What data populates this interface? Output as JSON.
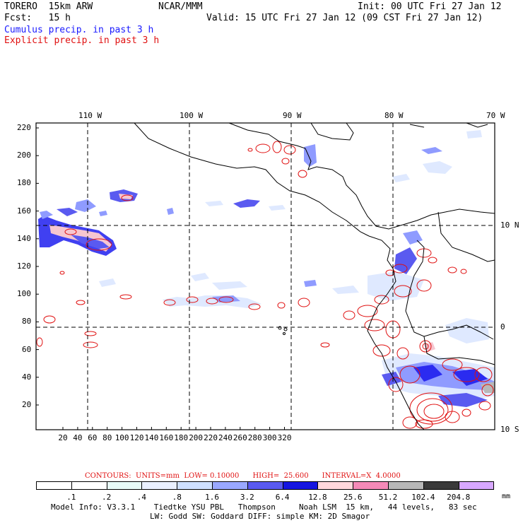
{
  "header": {
    "model": "TORERO  15km ARW",
    "org": "NCAR/MMM",
    "init": "Init: 00 UTC Fri 27 Jan 12",
    "fcst": "Fcst:   15 h",
    "valid": "Valid: 15 UTC Fri 27 Jan 12 (09 CST Fri 27 Jan 12)"
  },
  "legend": {
    "cumulus": "Cumulus precip. in past 3 h",
    "explicit": "Explicit precip. in past 3 h"
  },
  "map": {
    "top_lon_labels": [
      "110 W",
      "100 W",
      "90 W",
      "80 W",
      "70 W"
    ],
    "right_lat_labels": [
      "10 N",
      "0",
      "10 S"
    ],
    "y_ticks": [
      "220",
      "200",
      "180",
      "160",
      "140",
      "120",
      "100",
      "80",
      "60",
      "40",
      "20"
    ],
    "x_ticks": [
      "20",
      "40",
      "60",
      "80",
      "100",
      "120",
      "140",
      "160",
      "180",
      "200",
      "220",
      "240",
      "260",
      "280",
      "300",
      "320"
    ],
    "colors": {
      "coast": "#000000",
      "explicit_contour": "#e01010",
      "cumulus_light": "#dfe9ff",
      "cumulus_mid": "#8f9bff",
      "cumulus_dark": "#2b2bf0",
      "cumulus_pink": "#f6c6d0"
    }
  },
  "contours": {
    "text": "CONTOURS:  UNITS=mm  LOW= 0.10000      HIGH=  25.600      INTERVAL=X  4.0000"
  },
  "colorbar": {
    "labels": [
      ".1",
      ".2",
      ".4",
      ".8",
      "1.6",
      "3.2",
      "6.4",
      "12.8",
      "25.6",
      "51.2",
      "102.4",
      "204.8"
    ],
    "colors": [
      "#ffffff",
      "#ffffff",
      "#e8fbf8",
      "#eaf0ff",
      "#cfe0ff",
      "#9aa8ff",
      "#5a5af0",
      "#1515e0",
      "#ffd8dc",
      "#f58ab8",
      "#b8b8b8",
      "#3a3a3a",
      "#d8a8ff"
    ],
    "unit": "mm"
  },
  "footer": {
    "line1": "Model Info: V3.3.1    Tiedtke YSU PBL   Thompson     Noah LSM  15 km,   44 levels,   83 sec",
    "line2": "LW: Godd SW: Goddard DIFF: simple KM: 2D Smagor"
  }
}
